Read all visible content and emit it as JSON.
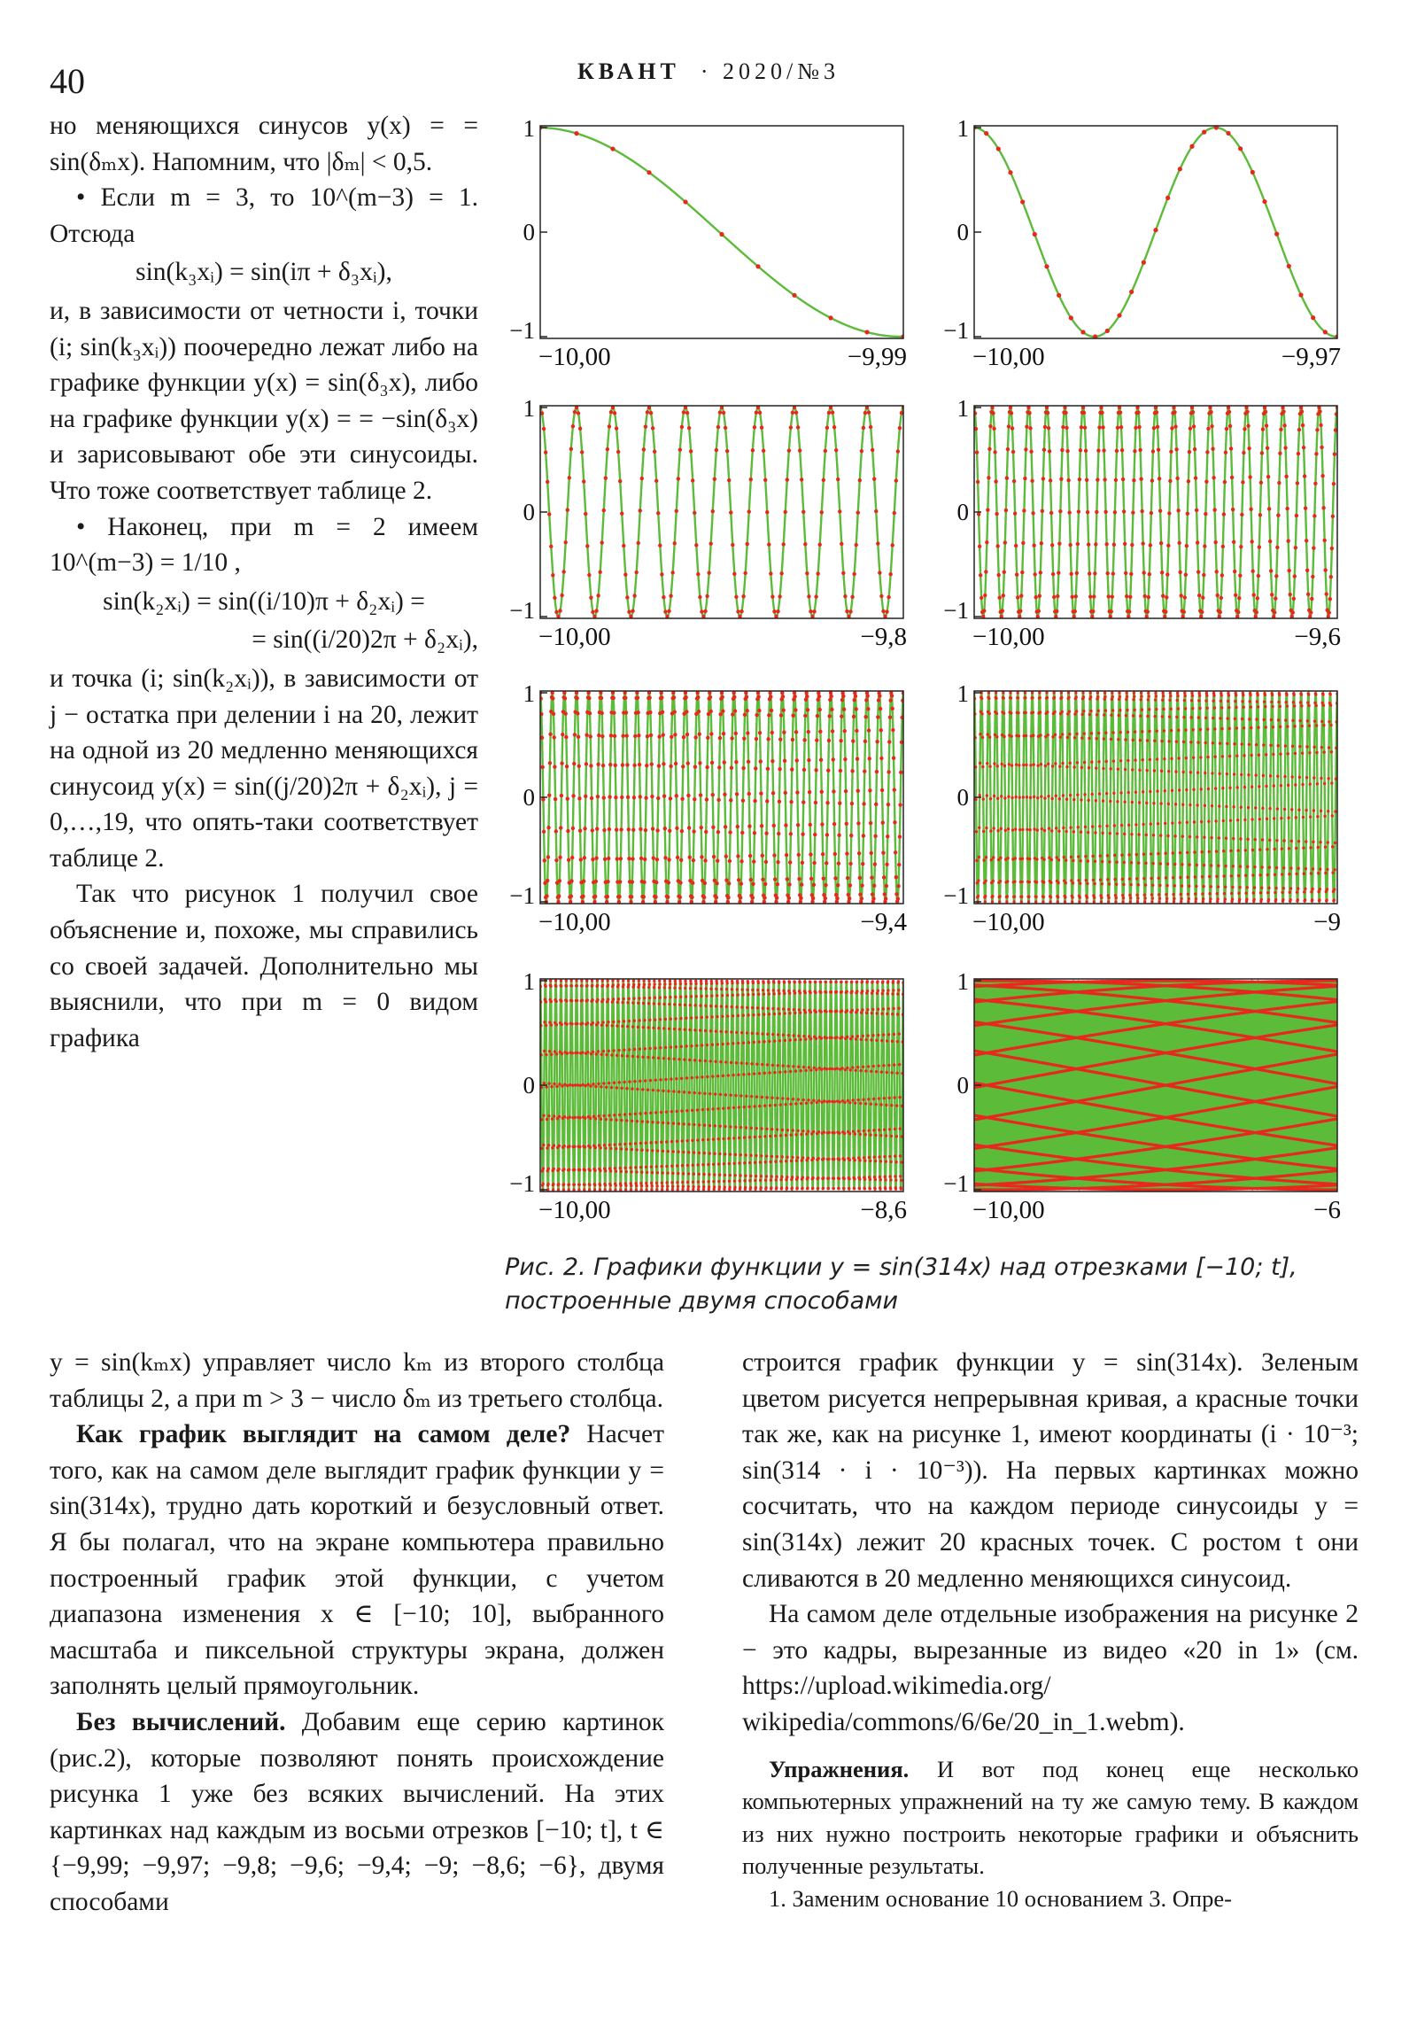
{
  "header": {
    "page_number": "40",
    "journal": "КВАНТ",
    "issue": "· 2020/№3"
  },
  "left_column": [
    "но меняющихся синусов y(x) = = sin(δₘx). Напомним, что |δₘ| < 0,5.",
    "• Если m = 3, то 10^(m−3) = 1. Отсюда",
    "sin(k₃xᵢ) = sin(iπ + δ₃xᵢ),",
    "и, в зависимости от четности i, точки (i; sin(k₃xᵢ)) поочередно лежат либо на графике функции y(x) = sin(δ₃x), либо на графике функции y(x) = = −sin(δ₃x) и зарисовывают обе эти синусоиды. Что тоже соответствует таблице 2.",
    "• Наконец, при m = 2 имеем 10^(m−3) = 1/10 ,",
    "sin(k₂xᵢ) = sin((i/10)π + δ₂xᵢ) =",
    "= sin((i/20)2π + δ₂xᵢ),",
    "и точка (i; sin(k₂xᵢ)), в зависимости от j − остатка при делении i на 20, лежит на одной из 20 медленно меняющихся синусоид y(x) = sin((j/20)2π + δ₂xᵢ), j = 0,…,19, что опять-таки соответствует таблице 2.",
    "Так что рисунок 1 получил свое объяснение и, похоже, мы справились со своей задачей. Дополнительно мы выяснили, что при m = 0 видом графика"
  ],
  "wide_left": [
    "y = sin(kₘx) управляет число kₘ из второго столбца таблицы 2, а при m > 3 − число δₘ из третьего столбца.",
    "Как график выглядит на самом деле?",
    "Насчет того, как на самом деле выглядит график функции y = sin(314x), трудно дать короткий и безусловный ответ. Я бы полагал, что на экране компьютера правильно построенный график этой функции, с учетом диапазона изменения x ∈ [−10; 10], выбранного масштаба и пиксельной структуры экрана, должен заполнять целый прямоугольник.",
    "Без вычислений.",
    "Добавим еще серию картинок (рис.2), которые позволяют понять происхождение рисунка 1 уже без всяких вычислений. На этих картинках над каждым из восьми отрезков [−10; t], t ∈ {−9,99; −9,97; −9,8; −9,6; −9,4; −9; −8,6; −6}, двумя способами"
  ],
  "right_column": [
    "строится график функции y = sin(314x). Зеленым цветом рисуется непрерывная кривая, а красные точки так же, как на рисунке 1, имеют координаты (i · 10⁻³; sin(314 · i · 10⁻³)). На первых картинках можно сосчитать, что на каждом периоде синусоиды y = sin(314x) лежит 20 красных точек. С ростом t они сливаются в 20 медленно меняющихся синусоид.",
    "На самом деле отдельные изображения на рисунке 2 − это кадры, вырезанные из видео «20 in 1» (см. https://upload.wikimedia.org/ wikipedia/commons/6/6e/20_in_1.webm).",
    "Упражнения.",
    "И вот под конец еще несколько компьютерных упражнений на ту же самую тему. В каждом из них нужно построить некоторые графики и объяснить полученные результаты.",
    "1. Заменим основание 10 основанием 3. Опре-"
  ],
  "figure": {
    "caption": "Рис. 2. Графики функции y = sin(314x) над отрезками [−10; t], построенные двумя способами",
    "curve_color": "#5dbb3a",
    "dot_color": "#e8281e"
  },
  "chart_data": [
    {
      "type": "line",
      "x_range": [
        -10.0,
        -9.99
      ],
      "xticks": [
        "−10,00",
        "−9,99"
      ],
      "yticks": [
        "−1",
        "0",
        "1"
      ],
      "ylim": [
        -1,
        1
      ],
      "series": [
        {
          "type": "line",
          "function": "sin(314x)"
        },
        {
          "type": "scatter",
          "points": "x = i·10⁻³, y = sin(314·i·10⁻³)"
        }
      ]
    },
    {
      "type": "line",
      "x_range": [
        -10.0,
        -9.97
      ],
      "xticks": [
        "−10,00",
        "−9,97"
      ],
      "yticks": [
        "−1",
        "0",
        "1"
      ],
      "ylim": [
        -1,
        1
      ],
      "series": [
        {
          "type": "line",
          "function": "sin(314x)"
        },
        {
          "type": "scatter",
          "points": "x = i·10⁻³, y = sin(314·i·10⁻³)"
        }
      ]
    },
    {
      "type": "line",
      "x_range": [
        -10.0,
        -9.8
      ],
      "xticks": [
        "−10,00",
        "−9,8"
      ],
      "yticks": [
        "−1",
        "0",
        "1"
      ],
      "ylim": [
        -1,
        1
      ],
      "series": [
        {
          "type": "line",
          "function": "sin(314x)"
        },
        {
          "type": "scatter",
          "points": "x = i·10⁻³, y = sin(314·i·10⁻³)"
        }
      ]
    },
    {
      "type": "line",
      "x_range": [
        -10.0,
        -9.6
      ],
      "xticks": [
        "−10,00",
        "−9,6"
      ],
      "yticks": [
        "−1",
        "0",
        "1"
      ],
      "ylim": [
        -1,
        1
      ],
      "series": [
        {
          "type": "line",
          "function": "sin(314x)"
        },
        {
          "type": "scatter",
          "points": "x = i·10⁻³, y = sin(314·i·10⁻³)"
        }
      ]
    },
    {
      "type": "line",
      "x_range": [
        -10.0,
        -9.4
      ],
      "xticks": [
        "−10,00",
        "−9,4"
      ],
      "yticks": [
        "−1",
        "0",
        "1"
      ],
      "ylim": [
        -1,
        1
      ],
      "series": [
        {
          "type": "line",
          "function": "sin(314x)"
        },
        {
          "type": "scatter",
          "points": "x = i·10⁻³, y = sin(314·i·10⁻³)"
        }
      ]
    },
    {
      "type": "line",
      "x_range": [
        -10.0,
        -9
      ],
      "xticks": [
        "−10,00",
        "−9"
      ],
      "yticks": [
        "−1",
        "0",
        "1"
      ],
      "ylim": [
        -1,
        1
      ],
      "series": [
        {
          "type": "line",
          "function": "sin(314x)"
        },
        {
          "type": "scatter",
          "points": "x = i·10⁻³, y = sin(314·i·10⁻³)"
        }
      ]
    },
    {
      "type": "line",
      "x_range": [
        -10.0,
        -8.6
      ],
      "xticks": [
        "−10,00",
        "−8,6"
      ],
      "yticks": [
        "−1",
        "0",
        "1"
      ],
      "ylim": [
        -1,
        1
      ],
      "series": [
        {
          "type": "line",
          "function": "sin(314x)"
        },
        {
          "type": "scatter",
          "points": "x = i·10⁻³, y = sin(314·i·10⁻³)"
        }
      ]
    },
    {
      "type": "line",
      "x_range": [
        -10.0,
        -6
      ],
      "xticks": [
        "−10,00",
        "−6"
      ],
      "yticks": [
        "−1",
        "0",
        "1"
      ],
      "ylim": [
        -1,
        1
      ],
      "series": [
        {
          "type": "line",
          "function": "sin(314x)"
        },
        {
          "type": "scatter",
          "points": "x = i·10⁻³, y = sin(314·i·10⁻³)"
        }
      ]
    }
  ]
}
